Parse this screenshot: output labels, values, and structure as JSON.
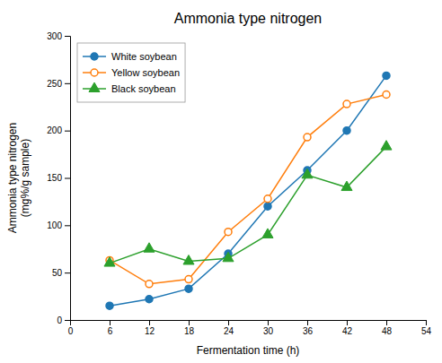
{
  "chart_data": {
    "type": "line",
    "title": "Ammonia type nitrogen",
    "x_label": "Fermentation time (h)",
    "y_label": "Ammonia type nitrogen\n(mg%/g sample)",
    "x": [
      6,
      12,
      18,
      24,
      30,
      36,
      42,
      48
    ],
    "series": [
      {
        "name": "White soybean",
        "marker": "circle",
        "values": [
          15,
          22,
          33,
          70,
          120,
          158,
          200,
          258
        ]
      },
      {
        "name": "Yellow soybean",
        "marker": "open-circle",
        "values": [
          63,
          38,
          43,
          93,
          128,
          193,
          228,
          238
        ]
      },
      {
        "name": "Black soybean",
        "marker": "triangle",
        "values": [
          60,
          75,
          62,
          65,
          90,
          153,
          140,
          183
        ]
      }
    ],
    "xlim": [
      0,
      54
    ],
    "ylim": [
      0,
      300
    ],
    "xticks": [
      0,
      6,
      12,
      18,
      24,
      30,
      36,
      42,
      48,
      54
    ],
    "yticks": [
      0,
      50,
      100,
      150,
      200,
      250,
      300
    ],
    "grid": false,
    "legend": "upper left"
  }
}
